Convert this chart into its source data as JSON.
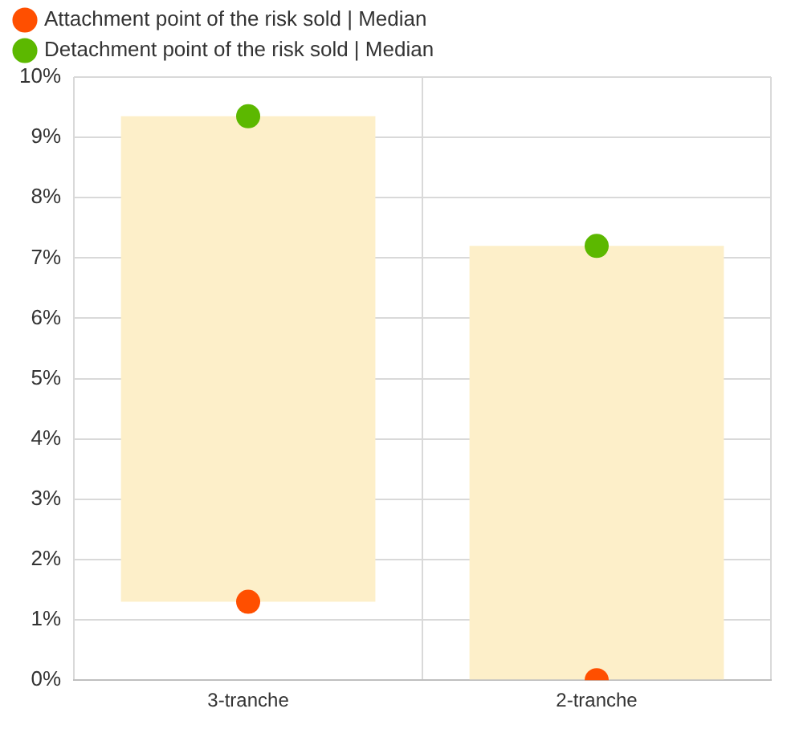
{
  "chart_data": {
    "type": "bar",
    "categories": [
      "3-tranche",
      "2-tranche"
    ],
    "series": [
      {
        "color": "#fdefc9",
        "base": [
          1.3,
          0
        ],
        "values": [
          8.05,
          7.2
        ]
      },
      {
        "type": "scatter",
        "name": "Attachment point of the risk sold | Median",
        "color": "#ff4f00",
        "x": [
          "3-tranche",
          "2-tranche"
        ],
        "values": [
          1.3,
          0
        ]
      },
      {
        "type": "scatter",
        "name": "Detachment point of the risk sold | Median",
        "color": "#5cb800",
        "x": [
          "3-tranche",
          "2-tranche"
        ],
        "values": [
          9.35,
          7.2
        ]
      }
    ],
    "ylim": [
      0,
      10
    ],
    "yticks": [
      {
        "value": 0,
        "label": "0%"
      },
      {
        "value": 1,
        "label": "1%"
      },
      {
        "value": 2,
        "label": "2%"
      },
      {
        "value": 3,
        "label": "3%"
      },
      {
        "value": 4,
        "label": "4%"
      },
      {
        "value": 5,
        "label": "5%"
      },
      {
        "value": 6,
        "label": "6%"
      },
      {
        "value": 7,
        "label": "7%"
      },
      {
        "value": 8,
        "label": "8%"
      },
      {
        "value": 9,
        "label": "9%"
      },
      {
        "value": 10,
        "label": "10%"
      }
    ],
    "grid": true,
    "legend": "top left",
    "marker": "circle"
  }
}
